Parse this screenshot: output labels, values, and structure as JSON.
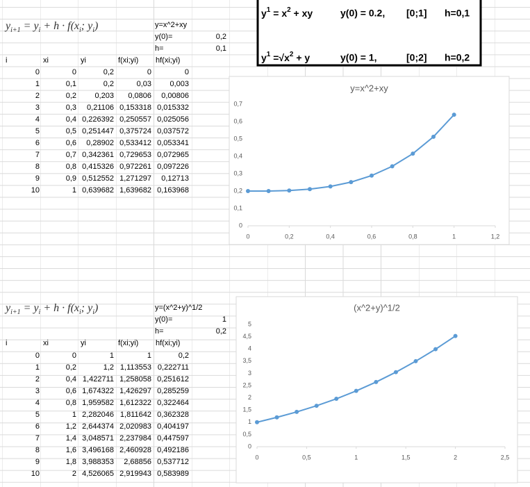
{
  "task_box": {
    "lines": [
      {
        "equation": [
          "y",
          "1",
          " = x",
          "2",
          " + xy"
        ],
        "initial": "y(0) = 0.2,",
        "interval": "[0;1]",
        "step": "h=0,1"
      },
      {
        "equation": [
          "y",
          "1",
          " =√x",
          "2",
          " + y"
        ],
        "initial": "y(0) = 1,",
        "interval": "[0;2]",
        "step": "h=0,2"
      }
    ]
  },
  "tables": [
    {
      "formula": [
        "y",
        "i+1",
        " = y",
        "i",
        " + h · f(x",
        "i",
        "; y",
        "i",
        ")"
      ],
      "definition": "y=x^2+xy",
      "params": [
        [
          "y(0)=",
          "0,2"
        ],
        [
          "h=",
          "0,1"
        ]
      ],
      "header": [
        "i",
        "xi",
        "yi",
        "f(xi;yi)",
        "hf(xi;yi)"
      ],
      "rows": [
        [
          "0",
          "0",
          "0,2",
          "0",
          "0"
        ],
        [
          "1",
          "0,1",
          "0,2",
          "0,03",
          "0,003"
        ],
        [
          "2",
          "0,2",
          "0,203",
          "0,0806",
          "0,00806"
        ],
        [
          "3",
          "0,3",
          "0,21106",
          "0,153318",
          "0,015332"
        ],
        [
          "4",
          "0,4",
          "0,226392",
          "0,250557",
          "0,025056"
        ],
        [
          "5",
          "0,5",
          "0,251447",
          "0,375724",
          "0,037572"
        ],
        [
          "6",
          "0,6",
          "0,28902",
          "0,533412",
          "0,053341"
        ],
        [
          "7",
          "0,7",
          "0,342361",
          "0,729653",
          "0,072965"
        ],
        [
          "8",
          "0,8",
          "0,415326",
          "0,972261",
          "0,097226"
        ],
        [
          "9",
          "0,9",
          "0,512552",
          "1,271297",
          "0,12713"
        ],
        [
          "10",
          "1",
          "0,639682",
          "1,639682",
          "0,163968"
        ]
      ]
    },
    {
      "formula": [
        "y",
        "i+1",
        " = y",
        "i",
        " + h · f(x",
        "i",
        "; y",
        "i",
        ")"
      ],
      "definition": "y=(x^2+y)^1/2",
      "params": [
        [
          "y(0)=",
          "1"
        ],
        [
          "h=",
          "0,2"
        ]
      ],
      "header": [
        "i",
        "xi",
        "yi",
        "f(xi;yi)",
        "hf(xi;yi)"
      ],
      "rows": [
        [
          "0",
          "0",
          "1",
          "1",
          "0,2"
        ],
        [
          "1",
          "0,2",
          "1,2",
          "1,113553",
          "0,222711"
        ],
        [
          "2",
          "0,4",
          "1,422711",
          "1,258058",
          "0,251612"
        ],
        [
          "3",
          "0,6",
          "1,674322",
          "1,426297",
          "0,285259"
        ],
        [
          "4",
          "0,8",
          "1,959582",
          "1,612322",
          "0,322464"
        ],
        [
          "5",
          "1",
          "2,282046",
          "1,811642",
          "0,362328"
        ],
        [
          "6",
          "1,2",
          "2,644374",
          "2,020983",
          "0,404197"
        ],
        [
          "7",
          "1,4",
          "3,048571",
          "2,237984",
          "0,447597"
        ],
        [
          "8",
          "1,6",
          "3,496168",
          "2,460928",
          "0,492186"
        ],
        [
          "9",
          "1,8",
          "3,988353",
          "2,68856",
          "0,537712"
        ],
        [
          "10",
          "2",
          "4,526065",
          "2,919943",
          "0,583989"
        ]
      ]
    }
  ],
  "chart_data": [
    {
      "type": "line",
      "title": "y=x^2+xy",
      "x": [
        0,
        0.1,
        0.2,
        0.3,
        0.4,
        0.5,
        0.6,
        0.7,
        0.8,
        0.9,
        1
      ],
      "series": [
        {
          "color": "#5b9bd5",
          "values": [
            0.2,
            0.2,
            0.203,
            0.21106,
            0.226392,
            0.251447,
            0.28902,
            0.342361,
            0.415326,
            0.512552,
            0.639682
          ]
        }
      ],
      "xlim": [
        0,
        1.2
      ],
      "xticks": [
        0,
        {
          "value": 0.2,
          "label": "0,2"
        },
        {
          "value": 0.4,
          "label": "0,4"
        },
        {
          "value": 0.6,
          "label": "0,6"
        },
        {
          "value": 0.8,
          "label": "0,8"
        },
        1,
        {
          "value": 1.2,
          "label": "1,2"
        }
      ],
      "ylim": [
        0,
        0.7
      ],
      "yticks": [
        0,
        {
          "value": 0.1,
          "label": "0,1"
        },
        {
          "value": 0.2,
          "label": "0,2"
        },
        {
          "value": 0.3,
          "label": "0,3"
        },
        {
          "value": 0.4,
          "label": "0,4"
        },
        {
          "value": 0.5,
          "label": "0,5"
        },
        {
          "value": 0.6,
          "label": "0,6"
        },
        {
          "value": 0.7,
          "label": "0,7"
        }
      ],
      "grid": false
    },
    {
      "type": "line",
      "title": "(x^2+y)^1/2",
      "x": [
        0,
        0.2,
        0.4,
        0.6,
        0.8,
        1,
        1.2,
        1.4,
        1.6,
        1.8,
        2
      ],
      "series": [
        {
          "color": "#5b9bd5",
          "values": [
            1,
            1.2,
            1.422711,
            1.674322,
            1.959582,
            2.282046,
            2.644374,
            3.048571,
            3.496168,
            3.988353,
            4.526065
          ]
        }
      ],
      "xlim": [
        0,
        2.5
      ],
      "xticks": [
        0,
        {
          "value": 0.5,
          "label": "0,5"
        },
        1,
        {
          "value": 1.5,
          "label": "1,5"
        },
        2,
        {
          "value": 2.5,
          "label": "2,5"
        }
      ],
      "ylim": [
        0,
        5
      ],
      "yticks": [
        0,
        {
          "value": 0.5,
          "label": "0,5"
        },
        1,
        {
          "value": 1.5,
          "label": "1,5"
        },
        2,
        {
          "value": 2.5,
          "label": "2,5"
        },
        3,
        {
          "value": 3.5,
          "label": "3,5"
        },
        4,
        {
          "value": 4.5,
          "label": "4,5"
        },
        5
      ],
      "grid": false
    }
  ]
}
